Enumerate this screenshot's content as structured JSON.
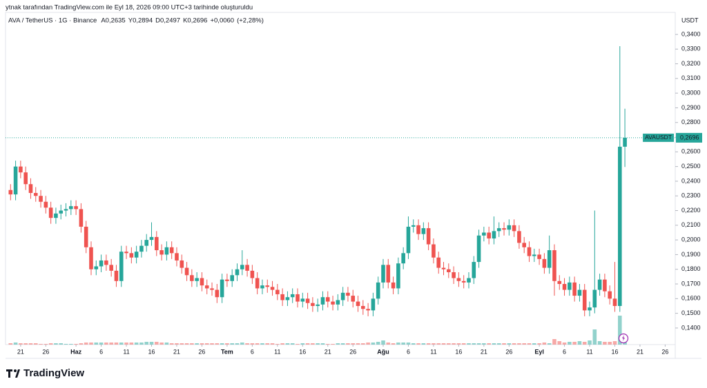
{
  "credit": "ytnak tarafından TradingView.com ile Eyl 18, 2026 09:00 UTC+3 tarihinde oluşturuldu",
  "brand": "TradingView",
  "chart_data": {
    "type": "candlestick",
    "title": "AVA / TetherUS · 1G · Binance",
    "ohlc_legend": [
      {
        "key": "A",
        "value": 0.2635,
        "label": "0,2635"
      },
      {
        "key": "Y",
        "value": 0.2894,
        "label": "0,2894"
      },
      {
        "key": "D",
        "value": 0.2497,
        "label": "0,2497"
      },
      {
        "key": "K",
        "value": 0.2696,
        "label": "0,2696"
      }
    ],
    "change": {
      "value": 0.006,
      "label": "+0,0060"
    },
    "change_pct": {
      "value": 2.28,
      "label": "(+2,28%)"
    },
    "currency": "USDT",
    "last_price": {
      "name": "AVAUSDT",
      "value": 0.2696,
      "label": "0,2696"
    },
    "up_color": "#26a69a",
    "down_color": "#ef5350",
    "x": [
      "2026-05-19",
      "2026-05-20",
      "2026-05-21",
      "2026-05-22",
      "2026-05-23",
      "2026-05-24",
      "2026-05-25",
      "2026-05-26",
      "2026-05-27",
      "2026-05-28",
      "2026-05-29",
      "2026-05-30",
      "2026-05-31",
      "2026-06-01",
      "2026-06-02",
      "2026-06-03",
      "2026-06-04",
      "2026-06-05",
      "2026-06-06",
      "2026-06-07",
      "2026-06-08",
      "2026-06-09",
      "2026-06-10",
      "2026-06-11",
      "2026-06-12",
      "2026-06-13",
      "2026-06-14",
      "2026-06-15",
      "2026-06-16",
      "2026-06-17",
      "2026-06-18",
      "2026-06-19",
      "2026-06-20",
      "2026-06-21",
      "2026-06-22",
      "2026-06-23",
      "2026-06-24",
      "2026-06-25",
      "2026-06-26",
      "2026-06-27",
      "2026-06-28",
      "2026-06-29",
      "2026-06-30",
      "2026-07-01",
      "2026-07-02",
      "2026-07-03",
      "2026-07-04",
      "2026-07-05",
      "2026-07-06",
      "2026-07-07",
      "2026-07-08",
      "2026-07-09",
      "2026-07-10",
      "2026-07-11",
      "2026-07-12",
      "2026-07-13",
      "2026-07-14",
      "2026-07-15",
      "2026-07-16",
      "2026-07-17",
      "2026-07-18",
      "2026-07-19",
      "2026-07-20",
      "2026-07-21",
      "2026-07-22",
      "2026-07-23",
      "2026-07-24",
      "2026-07-25",
      "2026-07-26",
      "2026-07-27",
      "2026-07-28",
      "2026-07-29",
      "2026-07-30",
      "2026-07-31",
      "2026-08-01",
      "2026-08-02",
      "2026-08-03",
      "2026-08-04",
      "2026-08-05",
      "2026-08-06",
      "2026-08-07",
      "2026-08-08",
      "2026-08-09",
      "2026-08-10",
      "2026-08-11",
      "2026-08-12",
      "2026-08-13",
      "2026-08-14",
      "2026-08-15",
      "2026-08-16",
      "2026-08-17",
      "2026-08-18",
      "2026-08-19",
      "2026-08-20",
      "2026-08-21",
      "2026-08-22",
      "2026-08-23",
      "2026-08-24",
      "2026-08-25",
      "2026-08-26",
      "2026-08-27",
      "2026-08-28",
      "2026-08-29",
      "2026-08-30",
      "2026-08-31",
      "2026-09-01",
      "2026-09-02",
      "2026-09-03",
      "2026-09-04",
      "2026-09-05",
      "2026-09-06",
      "2026-09-07",
      "2026-09-08",
      "2026-09-09",
      "2026-09-10",
      "2026-09-11",
      "2026-09-12",
      "2026-09-13",
      "2026-09-14",
      "2026-09-15",
      "2026-09-16",
      "2026-09-17",
      "2026-09-18"
    ],
    "open": [
      0.234,
      0.231,
      0.25,
      0.246,
      0.238,
      0.232,
      0.23,
      0.226,
      0.222,
      0.215,
      0.218,
      0.22,
      0.221,
      0.223,
      0.221,
      0.209,
      0.195,
      0.18,
      0.182,
      0.186,
      0.183,
      0.179,
      0.172,
      0.192,
      0.191,
      0.188,
      0.192,
      0.196,
      0.2,
      0.202,
      0.193,
      0.19,
      0.195,
      0.191,
      0.186,
      0.181,
      0.176,
      0.172,
      0.174,
      0.169,
      0.167,
      0.166,
      0.161,
      0.173,
      0.172,
      0.176,
      0.18,
      0.183,
      0.179,
      0.174,
      0.167,
      0.169,
      0.168,
      0.166,
      0.163,
      0.159,
      0.161,
      0.163,
      0.158,
      0.16,
      0.157,
      0.155,
      0.156,
      0.161,
      0.158,
      0.156,
      0.159,
      0.164,
      0.162,
      0.158,
      0.155,
      0.153,
      0.152,
      0.16,
      0.171,
      0.183,
      0.171,
      0.167,
      0.184,
      0.191,
      0.209,
      0.21,
      0.204,
      0.208,
      0.197,
      0.188,
      0.181,
      0.18,
      0.178,
      0.174,
      0.172,
      0.171,
      0.174,
      0.185,
      0.203,
      0.205,
      0.201,
      0.206,
      0.208,
      0.207,
      0.21,
      0.206,
      0.198,
      0.195,
      0.189,
      0.19,
      0.187,
      0.181,
      0.193,
      0.172,
      0.17,
      0.166,
      0.171,
      0.162,
      0.166,
      0.152,
      0.154,
      0.166,
      0.173,
      0.165,
      0.16,
      0.155,
      0.2635
    ],
    "high": [
      0.238,
      0.254,
      0.254,
      0.25,
      0.242,
      0.236,
      0.234,
      0.23,
      0.226,
      0.222,
      0.224,
      0.225,
      0.227,
      0.227,
      0.225,
      0.213,
      0.199,
      0.186,
      0.19,
      0.19,
      0.187,
      0.183,
      0.196,
      0.196,
      0.195,
      0.196,
      0.2,
      0.204,
      0.212,
      0.206,
      0.197,
      0.199,
      0.199,
      0.195,
      0.19,
      0.185,
      0.18,
      0.178,
      0.178,
      0.173,
      0.171,
      0.17,
      0.177,
      0.177,
      0.18,
      0.184,
      0.193,
      0.187,
      0.183,
      0.178,
      0.173,
      0.173,
      0.172,
      0.17,
      0.167,
      0.165,
      0.167,
      0.167,
      0.164,
      0.164,
      0.161,
      0.16,
      0.165,
      0.165,
      0.162,
      0.163,
      0.168,
      0.168,
      0.166,
      0.162,
      0.159,
      0.157,
      0.164,
      0.175,
      0.187,
      0.187,
      0.175,
      0.188,
      0.195,
      0.216,
      0.214,
      0.214,
      0.212,
      0.212,
      0.201,
      0.192,
      0.185,
      0.184,
      0.182,
      0.178,
      0.176,
      0.178,
      0.189,
      0.207,
      0.209,
      0.209,
      0.216,
      0.212,
      0.212,
      0.214,
      0.214,
      0.21,
      0.202,
      0.199,
      0.194,
      0.194,
      0.191,
      0.203,
      0.197,
      0.176,
      0.174,
      0.175,
      0.175,
      0.17,
      0.17,
      0.158,
      0.22,
      0.177,
      0.177,
      0.169,
      0.185,
      0.332,
      0.2894
    ],
    "low": [
      0.227,
      0.227,
      0.242,
      0.234,
      0.228,
      0.226,
      0.222,
      0.218,
      0.211,
      0.211,
      0.214,
      0.216,
      0.217,
      0.217,
      0.205,
      0.191,
      0.176,
      0.176,
      0.178,
      0.179,
      0.175,
      0.168,
      0.168,
      0.187,
      0.184,
      0.184,
      0.188,
      0.192,
      0.196,
      0.189,
      0.186,
      0.186,
      0.187,
      0.182,
      0.177,
      0.172,
      0.168,
      0.168,
      0.165,
      0.163,
      0.162,
      0.157,
      0.157,
      0.168,
      0.168,
      0.172,
      0.176,
      0.175,
      0.17,
      0.163,
      0.163,
      0.164,
      0.162,
      0.159,
      0.155,
      0.155,
      0.157,
      0.154,
      0.154,
      0.153,
      0.151,
      0.151,
      0.152,
      0.154,
      0.152,
      0.152,
      0.155,
      0.158,
      0.154,
      0.151,
      0.149,
      0.148,
      0.148,
      0.156,
      0.167,
      0.167,
      0.163,
      0.163,
      0.18,
      0.187,
      0.205,
      0.2,
      0.2,
      0.193,
      0.184,
      0.177,
      0.176,
      0.174,
      0.17,
      0.168,
      0.167,
      0.167,
      0.17,
      0.181,
      0.199,
      0.197,
      0.197,
      0.202,
      0.203,
      0.203,
      0.202,
      0.194,
      0.191,
      0.185,
      0.185,
      0.183,
      0.177,
      0.177,
      0.162,
      0.166,
      0.162,
      0.162,
      0.158,
      0.158,
      0.148,
      0.148,
      0.15,
      0.162,
      0.161,
      0.156,
      0.151,
      0.151,
      0.2497
    ],
    "close": [
      0.231,
      0.25,
      0.246,
      0.238,
      0.232,
      0.23,
      0.226,
      0.222,
      0.215,
      0.218,
      0.22,
      0.221,
      0.223,
      0.221,
      0.209,
      0.195,
      0.18,
      0.182,
      0.186,
      0.183,
      0.179,
      0.172,
      0.192,
      0.191,
      0.188,
      0.192,
      0.196,
      0.2,
      0.202,
      0.193,
      0.19,
      0.195,
      0.191,
      0.186,
      0.181,
      0.176,
      0.172,
      0.174,
      0.169,
      0.167,
      0.166,
      0.161,
      0.173,
      0.172,
      0.176,
      0.18,
      0.183,
      0.179,
      0.174,
      0.167,
      0.169,
      0.168,
      0.166,
      0.163,
      0.159,
      0.161,
      0.163,
      0.158,
      0.16,
      0.157,
      0.155,
      0.156,
      0.161,
      0.158,
      0.156,
      0.159,
      0.164,
      0.162,
      0.158,
      0.155,
      0.153,
      0.152,
      0.16,
      0.171,
      0.183,
      0.171,
      0.167,
      0.184,
      0.191,
      0.209,
      0.21,
      0.204,
      0.208,
      0.197,
      0.188,
      0.181,
      0.18,
      0.178,
      0.174,
      0.172,
      0.171,
      0.174,
      0.185,
      0.203,
      0.205,
      0.201,
      0.206,
      0.208,
      0.207,
      0.21,
      0.206,
      0.198,
      0.195,
      0.189,
      0.19,
      0.187,
      0.181,
      0.193,
      0.172,
      0.17,
      0.166,
      0.171,
      0.162,
      0.166,
      0.152,
      0.154,
      0.166,
      0.173,
      0.165,
      0.16,
      0.155,
      0.2635,
      0.2696
    ],
    "volume": [
      2,
      3,
      2,
      2,
      2,
      2,
      1,
      1,
      2,
      2,
      2,
      1,
      1,
      1,
      2,
      3,
      3,
      3,
      3,
      3,
      3,
      3,
      3,
      3,
      3,
      3,
      3,
      4,
      4,
      4,
      3,
      3,
      2,
      2,
      2,
      2,
      2,
      2,
      2,
      2,
      2,
      2,
      2,
      2,
      2,
      2,
      3,
      2,
      2,
      2,
      2,
      2,
      2,
      1,
      2,
      2,
      2,
      1,
      2,
      2,
      2,
      2,
      2,
      1,
      1,
      2,
      2,
      2,
      2,
      2,
      2,
      3,
      3,
      4,
      6,
      3,
      2,
      3,
      3,
      3,
      2,
      2,
      2,
      2,
      2,
      2,
      2,
      2,
      2,
      2,
      2,
      2,
      2,
      2,
      2,
      2,
      2,
      2,
      2,
      2,
      2,
      2,
      2,
      2,
      2,
      2,
      3,
      2,
      8,
      5,
      3,
      4,
      4,
      5,
      4,
      6,
      22,
      5,
      4,
      4,
      5,
      42,
      14
    ],
    "xlim": [
      "2026-05-18",
      "2026-09-28"
    ],
    "xticks": [
      {
        "value": "2026-05-21",
        "label": "21"
      },
      {
        "value": "2026-05-26",
        "label": "26"
      },
      {
        "value": "2026-06-01",
        "label": "Haz"
      },
      {
        "value": "2026-06-06",
        "label": "6"
      },
      {
        "value": "2026-06-11",
        "label": "11"
      },
      {
        "value": "2026-06-16",
        "label": "16"
      },
      {
        "value": "2026-06-21",
        "label": "21"
      },
      {
        "value": "2026-06-26",
        "label": "26"
      },
      {
        "value": "2026-07-01",
        "label": "Tem"
      },
      {
        "value": "2026-07-06",
        "label": "6"
      },
      {
        "value": "2026-07-11",
        "label": "11"
      },
      {
        "value": "2026-07-16",
        "label": "16"
      },
      {
        "value": "2026-07-21",
        "label": "21"
      },
      {
        "value": "2026-07-26",
        "label": "26"
      },
      {
        "value": "2026-08-01",
        "label": "Ağu"
      },
      {
        "value": "2026-08-06",
        "label": "6"
      },
      {
        "value": "2026-08-11",
        "label": "11"
      },
      {
        "value": "2026-08-16",
        "label": "16"
      },
      {
        "value": "2026-08-21",
        "label": "21"
      },
      {
        "value": "2026-08-26",
        "label": "26"
      },
      {
        "value": "2026-09-01",
        "label": "Eyl"
      },
      {
        "value": "2026-09-06",
        "label": "6"
      },
      {
        "value": "2026-09-11",
        "label": "11"
      },
      {
        "value": "2026-09-16",
        "label": "16"
      },
      {
        "value": "2026-09-21",
        "label": "21"
      },
      {
        "value": "2026-09-26",
        "label": "26"
      }
    ],
    "ylim": [
      0.1287,
      0.355
    ],
    "yticks": [
      {
        "value": 0.14,
        "label": "0,1400"
      },
      {
        "value": 0.15,
        "label": "0,1500"
      },
      {
        "value": 0.16,
        "label": "0,1600"
      },
      {
        "value": 0.17,
        "label": "0,1700"
      },
      {
        "value": 0.18,
        "label": "0,1800"
      },
      {
        "value": 0.19,
        "label": "0,1900"
      },
      {
        "value": 0.2,
        "label": "0,2000"
      },
      {
        "value": 0.21,
        "label": "0,2100"
      },
      {
        "value": 0.22,
        "label": "0,2200"
      },
      {
        "value": 0.23,
        "label": "0,2300"
      },
      {
        "value": 0.24,
        "label": "0,2400"
      },
      {
        "value": 0.25,
        "label": "0,2500"
      },
      {
        "value": 0.26,
        "label": "0,2600"
      },
      {
        "value": 0.27,
        "label": "0,2700"
      },
      {
        "value": 0.28,
        "label": "0,2800"
      },
      {
        "value": 0.29,
        "label": "0,2900"
      },
      {
        "value": 0.3,
        "label": "0,3000"
      },
      {
        "value": 0.31,
        "label": "0,3100"
      },
      {
        "value": 0.32,
        "label": "0,3200"
      },
      {
        "value": 0.33,
        "label": "0,3300"
      },
      {
        "value": 0.34,
        "label": "0,3400"
      }
    ],
    "grid": false
  }
}
